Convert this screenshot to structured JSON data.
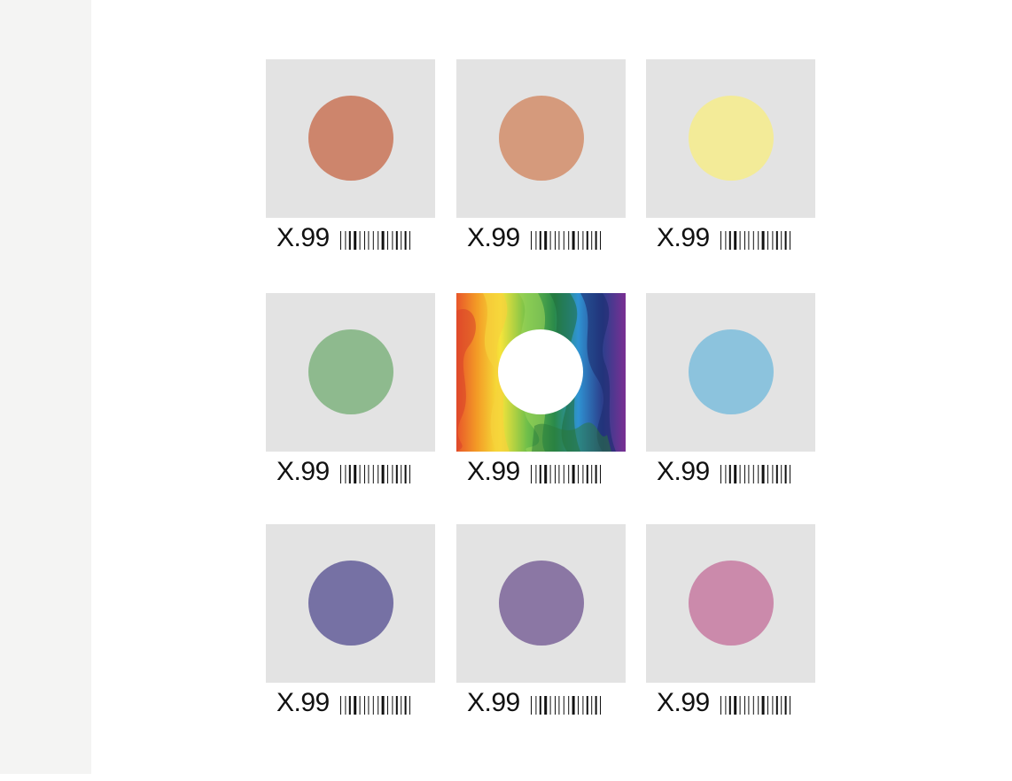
{
  "products": [
    {
      "price": "X.99",
      "color": "#cd856c",
      "pattern": "solid"
    },
    {
      "price": "X.99",
      "color": "#d59a7c",
      "pattern": "solid"
    },
    {
      "price": "X.99",
      "color": "#f3eb98",
      "pattern": "solid"
    },
    {
      "price": "X.99",
      "color": "#8eba8e",
      "pattern": "solid"
    },
    {
      "price": "X.99",
      "color": "#ffffff",
      "pattern": "rainbow-marble"
    },
    {
      "price": "X.99",
      "color": "#8cc3dd",
      "pattern": "solid"
    },
    {
      "price": "X.99",
      "color": "#7671a4",
      "pattern": "solid"
    },
    {
      "price": "X.99",
      "color": "#8b77a4",
      "pattern": "solid"
    },
    {
      "price": "X.99",
      "color": "#cb8aab",
      "pattern": "solid"
    }
  ],
  "colors": {
    "tile_background": "#e3e3e3",
    "side_panel": "#f4f4f3",
    "text": "#111111"
  },
  "icons": {
    "barcode": "barcode-icon"
  }
}
